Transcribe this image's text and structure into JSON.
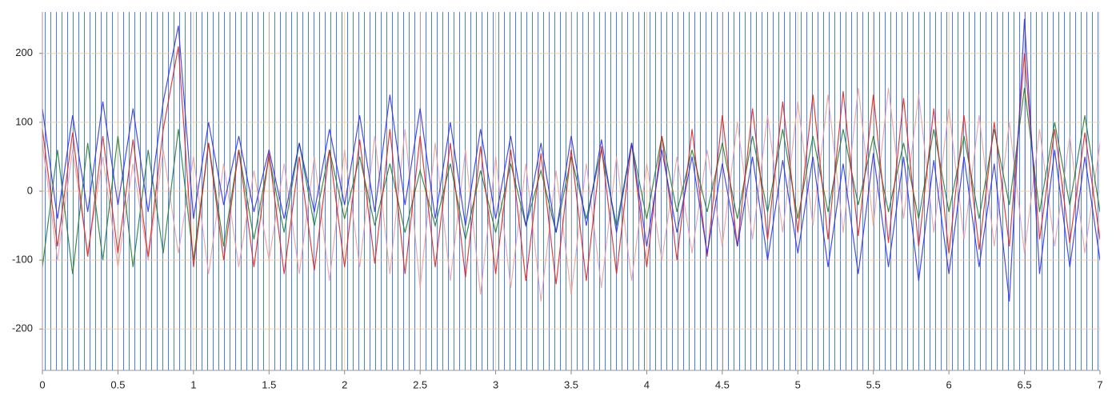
{
  "chart_data": {
    "type": "line",
    "x": [
      0,
      0.1,
      0.2,
      0.3,
      0.4,
      0.5,
      0.6,
      0.7,
      0.8,
      0.9,
      1,
      1.1,
      1.2,
      1.3,
      1.4,
      1.5,
      1.6,
      1.7,
      1.8,
      1.9,
      2,
      2.1,
      2.2,
      2.3,
      2.4,
      2.5,
      2.6,
      2.7,
      2.8,
      2.9,
      3,
      3.1,
      3.2,
      3.3,
      3.4,
      3.5,
      3.6,
      3.7,
      3.8,
      3.9,
      4,
      4.1,
      4.2,
      4.3,
      4.4,
      4.5,
      4.6,
      4.7,
      4.8,
      4.9,
      5,
      5.1,
      5.2,
      5.3,
      5.4,
      5.5,
      5.6,
      5.7,
      5.8,
      5.9,
      6,
      6.1,
      6.2,
      6.3,
      6.4,
      6.5,
      6.6,
      6.7,
      6.8,
      6.9,
      7
    ],
    "series": [
      {
        "color": "#e8a0a0",
        "values": [
          70,
          -100,
          60,
          -90,
          50,
          -110,
          40,
          -100,
          60,
          -90,
          50,
          -120,
          40,
          -110,
          30,
          -100,
          40,
          -120,
          50,
          -130,
          60,
          -110,
          80,
          -120,
          90,
          -140,
          70,
          -130,
          60,
          -150,
          50,
          -140,
          40,
          -160,
          30,
          -150,
          40,
          -140,
          50,
          -130,
          40,
          -100,
          50,
          -90,
          60,
          -80,
          100,
          -70,
          110,
          -60,
          130,
          -50,
          140,
          -60,
          150,
          -50,
          150,
          -40,
          140,
          -60,
          120,
          -70,
          110,
          -80,
          100,
          -90,
          90,
          -80,
          80,
          -90,
          70
        ]
      },
      {
        "color": "#1a7a2a",
        "values": [
          -110,
          60,
          -120,
          70,
          -100,
          80,
          -110,
          60,
          -90,
          90,
          -100,
          70,
          -80,
          60,
          -70,
          50,
          -60,
          70,
          -50,
          60,
          -40,
          50,
          -50,
          40,
          -60,
          30,
          -50,
          40,
          -70,
          30,
          -60,
          40,
          -50,
          30,
          -60,
          50,
          -40,
          60,
          -50,
          70,
          -40,
          80,
          -30,
          60,
          -30,
          70,
          -40,
          80,
          -30,
          90,
          -40,
          80,
          -30,
          90,
          -20,
          80,
          -30,
          70,
          -40,
          90,
          -30,
          80,
          -40,
          90,
          -20,
          150,
          -30,
          100,
          -20,
          110,
          -30
        ]
      },
      {
        "color": "#d81e1e",
        "values": [
          90,
          -80,
          85,
          -95,
          80,
          -90,
          75,
          -95,
          90,
          210,
          -110,
          70,
          -100,
          60,
          -110,
          55,
          -120,
          50,
          -115,
          60,
          -110,
          75,
          -105,
          90,
          -120,
          80,
          -110,
          70,
          -125,
          65,
          -120,
          60,
          -130,
          55,
          -135,
          60,
          -130,
          65,
          -120,
          70,
          -110,
          80,
          -100,
          90,
          -95,
          110,
          -80,
          120,
          -70,
          130,
          -60,
          140,
          -70,
          145,
          -65,
          140,
          -75,
          135,
          -80,
          120,
          -90,
          110,
          -85,
          100,
          -80,
          200,
          -70,
          90,
          -75,
          85,
          -70
        ]
      },
      {
        "color": "#2a2ee0",
        "values": [
          120,
          -40,
          110,
          -30,
          130,
          -20,
          120,
          -30,
          130,
          240,
          -40,
          100,
          -20,
          80,
          -30,
          60,
          -40,
          70,
          -30,
          90,
          -20,
          110,
          -30,
          140,
          -20,
          120,
          -40,
          100,
          -50,
          90,
          -40,
          80,
          -50,
          70,
          -60,
          80,
          -50,
          75,
          -60,
          70,
          -80,
          60,
          -60,
          50,
          -90,
          40,
          -80,
          50,
          -100,
          45,
          -90,
          50,
          -110,
          40,
          -120,
          55,
          -110,
          50,
          -130,
          45,
          -120,
          50,
          -110,
          40,
          -160,
          250,
          -120,
          60,
          -110,
          50,
          -100
        ]
      }
    ],
    "xlim": [
      0,
      7
    ],
    "xticks": [
      0,
      0.5,
      1,
      1.5,
      2,
      2.5,
      3,
      3.5,
      4,
      4.5,
      5,
      5.5,
      6,
      6.5,
      7
    ],
    "ylim": [
      -260,
      260
    ],
    "yticks": [
      -200,
      -100,
      0,
      100,
      200
    ],
    "grid": true,
    "grid_color": "#f0c890"
  }
}
